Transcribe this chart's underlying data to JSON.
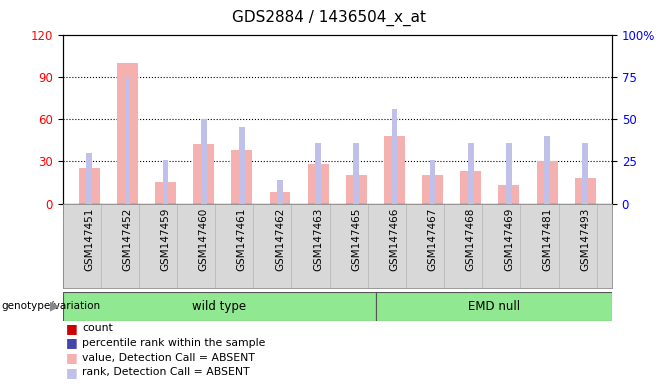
{
  "title": "GDS2884 / 1436504_x_at",
  "samples": [
    "GSM147451",
    "GSM147452",
    "GSM147459",
    "GSM147460",
    "GSM147461",
    "GSM147462",
    "GSM147463",
    "GSM147465",
    "GSM147466",
    "GSM147467",
    "GSM147468",
    "GSM147469",
    "GSM147481",
    "GSM147493"
  ],
  "count_values": [
    25,
    100,
    15,
    42,
    38,
    8,
    28,
    20,
    48,
    20,
    23,
    13,
    30,
    18
  ],
  "rank_values": [
    30,
    74,
    26,
    50,
    45,
    14,
    36,
    36,
    56,
    26,
    36,
    36,
    40,
    36
  ],
  "wild_type_count": 8,
  "emd_null_count": 6,
  "left_ylim": [
    0,
    120
  ],
  "right_ylim": [
    0,
    100
  ],
  "left_yticks": [
    0,
    30,
    60,
    90,
    120
  ],
  "right_yticks": [
    0,
    25,
    50,
    75,
    100
  ],
  "right_yticklabels": [
    "0",
    "25",
    "50",
    "75",
    "100%"
  ],
  "bar_color_absent_val": "#f5b0b0",
  "bar_color_absent_rank": "#c0c0e8",
  "bg_color": "#d8d8d8",
  "green_color": "#90e890",
  "legend_items": [
    {
      "color": "#cc0000",
      "marker": "s",
      "label": "count"
    },
    {
      "color": "#4444aa",
      "marker": "s",
      "label": "percentile rank within the sample"
    },
    {
      "color": "#f5b0b0",
      "marker": "s",
      "label": "value, Detection Call = ABSENT"
    },
    {
      "color": "#c0c0e8",
      "marker": "s",
      "label": "rank, Detection Call = ABSENT"
    }
  ]
}
